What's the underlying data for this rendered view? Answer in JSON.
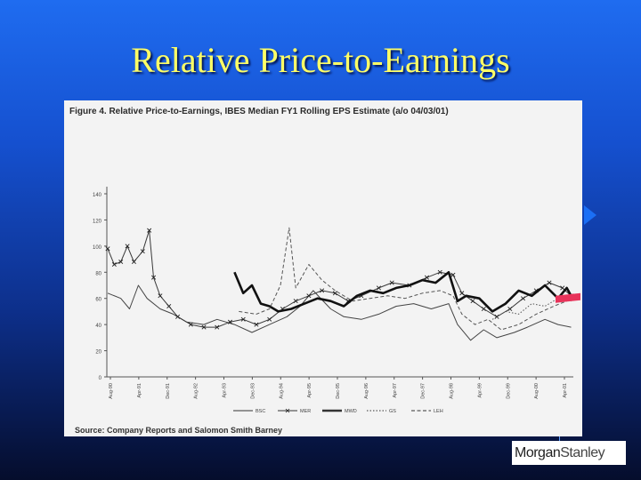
{
  "slide": {
    "title": "Relative Price-to-Earnings",
    "logo_text": [
      "Morgan",
      "Stanley"
    ]
  },
  "figure": {
    "caption": "Figure 4.  Relative Price-to-Earnings, IBES Median FY1 Rolling EPS Estimate (a/o 04/03/01)",
    "source": "Source:  Company Reports and Salomon Smith Barney"
  },
  "chart_data": {
    "type": "line",
    "title": "Relative Price-to-Earnings",
    "ylim": [
      0,
      140
    ],
    "yticks": [
      0,
      20,
      40,
      60,
      80,
      100,
      120,
      140
    ],
    "xlim": [
      1990.58,
      2001.25
    ],
    "xtick_labels": [
      "Aug-90",
      "Apr-91",
      "Dec-91",
      "Aug-92",
      "Apr-93",
      "Dec-93",
      "Aug-94",
      "Apr-95",
      "Dec-95",
      "Aug-96",
      "Apr-97",
      "Dec-97",
      "Aug-98",
      "Apr-99",
      "Dec-99",
      "Aug-00",
      "Apr-01"
    ],
    "legend": [
      "BSC",
      "MER",
      "MWD",
      "GS",
      "LEH"
    ],
    "legend_position": "bottom",
    "grid": false,
    "series": [
      {
        "name": "BSC",
        "style": "thin",
        "color": "#444444",
        "points": [
          [
            1990.6,
            64
          ],
          [
            1990.9,
            60
          ],
          [
            1991.1,
            52
          ],
          [
            1991.3,
            70
          ],
          [
            1991.5,
            60
          ],
          [
            1991.8,
            52
          ],
          [
            1992.1,
            48
          ],
          [
            1992.4,
            42
          ],
          [
            1992.8,
            40
          ],
          [
            1993.1,
            44
          ],
          [
            1993.5,
            40
          ],
          [
            1993.9,
            34
          ],
          [
            1994.3,
            40
          ],
          [
            1994.7,
            46
          ],
          [
            1995.0,
            54
          ],
          [
            1995.3,
            66
          ],
          [
            1995.7,
            52
          ],
          [
            1996.0,
            46
          ],
          [
            1996.4,
            44
          ],
          [
            1996.8,
            48
          ],
          [
            1997.2,
            54
          ],
          [
            1997.6,
            56
          ],
          [
            1998.0,
            52
          ],
          [
            1998.4,
            56
          ],
          [
            1998.6,
            40
          ],
          [
            1998.9,
            28
          ],
          [
            1999.2,
            36
          ],
          [
            1999.5,
            30
          ],
          [
            1999.9,
            34
          ],
          [
            2000.2,
            38
          ],
          [
            2000.6,
            44
          ],
          [
            2000.9,
            40
          ],
          [
            2001.2,
            38
          ]
        ]
      },
      {
        "name": "MER",
        "style": "x-markers",
        "color": "#3a3a3a",
        "points": [
          [
            1990.6,
            98
          ],
          [
            1990.75,
            86
          ],
          [
            1990.9,
            88
          ],
          [
            1991.05,
            100
          ],
          [
            1991.2,
            88
          ],
          [
            1991.4,
            96
          ],
          [
            1991.55,
            112
          ],
          [
            1991.65,
            76
          ],
          [
            1991.8,
            62
          ],
          [
            1992.0,
            54
          ],
          [
            1992.2,
            46
          ],
          [
            1992.5,
            40
          ],
          [
            1992.8,
            38
          ],
          [
            1993.1,
            38
          ],
          [
            1993.4,
            42
          ],
          [
            1993.7,
            44
          ],
          [
            1994.0,
            40
          ],
          [
            1994.3,
            44
          ],
          [
            1994.6,
            52
          ],
          [
            1994.9,
            58
          ],
          [
            1995.2,
            62
          ],
          [
            1995.5,
            66
          ],
          [
            1995.8,
            64
          ],
          [
            1996.1,
            58
          ],
          [
            1996.4,
            62
          ],
          [
            1996.8,
            68
          ],
          [
            1997.1,
            72
          ],
          [
            1997.5,
            70
          ],
          [
            1997.9,
            76
          ],
          [
            1998.2,
            80
          ],
          [
            1998.5,
            78
          ],
          [
            1998.7,
            64
          ],
          [
            1998.95,
            58
          ],
          [
            1999.2,
            52
          ],
          [
            1999.5,
            46
          ],
          [
            1999.8,
            52
          ],
          [
            2000.1,
            60
          ],
          [
            2000.4,
            66
          ],
          [
            2000.7,
            72
          ],
          [
            2001.0,
            68
          ],
          [
            2001.2,
            62
          ]
        ]
      },
      {
        "name": "MWD",
        "style": "thick",
        "color": "#111111",
        "points": [
          [
            1993.5,
            80
          ],
          [
            1993.7,
            64
          ],
          [
            1993.9,
            70
          ],
          [
            1994.1,
            56
          ],
          [
            1994.3,
            54
          ],
          [
            1994.5,
            50
          ],
          [
            1994.8,
            52
          ],
          [
            1995.1,
            56
          ],
          [
            1995.4,
            60
          ],
          [
            1995.7,
            58
          ],
          [
            1996.0,
            54
          ],
          [
            1996.3,
            62
          ],
          [
            1996.6,
            66
          ],
          [
            1996.9,
            64
          ],
          [
            1997.2,
            68
          ],
          [
            1997.5,
            70
          ],
          [
            1997.8,
            74
          ],
          [
            1998.1,
            72
          ],
          [
            1998.4,
            80
          ],
          [
            1998.6,
            58
          ],
          [
            1998.8,
            62
          ],
          [
            1999.1,
            60
          ],
          [
            1999.4,
            50
          ],
          [
            1999.7,
            56
          ],
          [
            2000.0,
            66
          ],
          [
            2000.3,
            62
          ],
          [
            2000.6,
            70
          ],
          [
            2000.9,
            60
          ],
          [
            2001.1,
            68
          ],
          [
            2001.2,
            62
          ]
        ]
      },
      {
        "name": "GS",
        "style": "dotted",
        "color": "#555555",
        "points": [
          [
            1999.4,
            44
          ],
          [
            1999.7,
            50
          ],
          [
            2000.0,
            48
          ],
          [
            2000.3,
            56
          ],
          [
            2000.6,
            54
          ],
          [
            2000.9,
            60
          ],
          [
            2001.2,
            58
          ]
        ]
      },
      {
        "name": "LEH",
        "style": "dashed",
        "color": "#555555",
        "points": [
          [
            1993.6,
            50
          ],
          [
            1994.0,
            48
          ],
          [
            1994.3,
            52
          ],
          [
            1994.55,
            70
          ],
          [
            1994.75,
            114
          ],
          [
            1994.9,
            68
          ],
          [
            1995.2,
            86
          ],
          [
            1995.5,
            74
          ],
          [
            1995.8,
            66
          ],
          [
            1996.2,
            58
          ],
          [
            1996.6,
            60
          ],
          [
            1997.0,
            62
          ],
          [
            1997.4,
            60
          ],
          [
            1997.8,
            64
          ],
          [
            1998.2,
            66
          ],
          [
            1998.5,
            62
          ],
          [
            1998.7,
            48
          ],
          [
            1999.0,
            40
          ],
          [
            1999.3,
            44
          ],
          [
            1999.6,
            36
          ],
          [
            2000.0,
            40
          ],
          [
            2000.4,
            48
          ],
          [
            2000.8,
            54
          ],
          [
            2001.1,
            58
          ],
          [
            2001.2,
            60
          ]
        ]
      }
    ]
  }
}
